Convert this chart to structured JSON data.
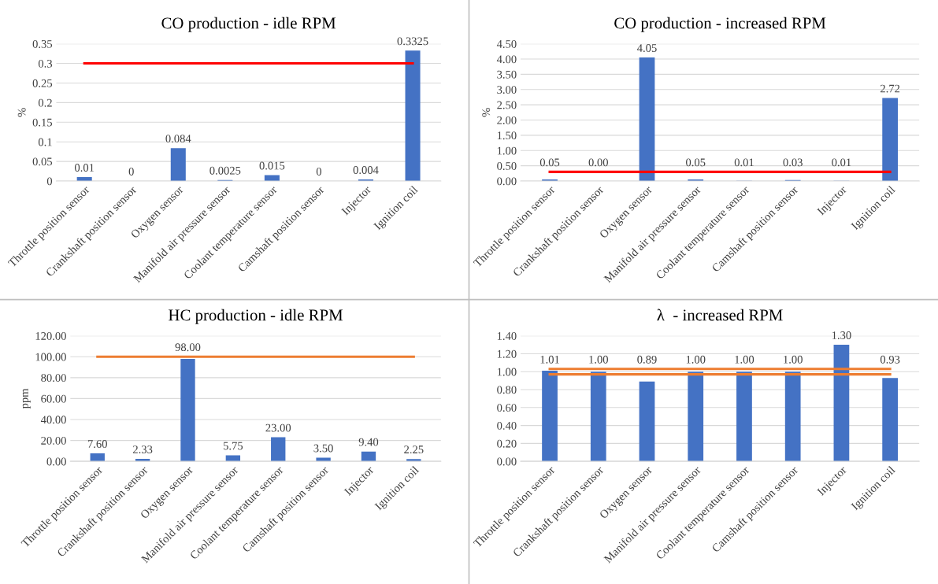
{
  "chart_data": [
    {
      "type": "bar",
      "title": "CO production - idle RPM",
      "ylabel": "%",
      "categories": [
        "Throttle position sensor",
        "Crankshaft position sensor",
        "Oxygen sensor",
        "Manifold air pressure sensor",
        "Coolant temperature sensor",
        "Camshaft position sensor",
        "Injector",
        "Ignition coil"
      ],
      "ylim": [
        0,
        0.35
      ],
      "yticks": [
        0,
        0.05,
        0.1,
        0.15,
        0.2,
        0.25,
        0.3,
        0.35
      ],
      "grid": "y",
      "legend": false,
      "series": [
        {
          "color": "#4472c4",
          "values": [
            0.01,
            0,
            0.084,
            0.0025,
            0.015,
            0,
            0.004,
            0.3325
          ],
          "value_labels": [
            "0.01",
            "0",
            "0.084",
            "0.0025",
            "0.015",
            "0",
            "0.004",
            "0.3325"
          ]
        },
        {
          "type": "line",
          "color": "#ff0000",
          "values": [
            0.3,
            0.3,
            0.3,
            0.3,
            0.3,
            0.3,
            0.3,
            0.3
          ]
        }
      ]
    },
    {
      "type": "bar",
      "title": "CO production - increased RPM",
      "ylabel": "%",
      "categories": [
        "Throttle position sensor",
        "Crankshaft position sensor",
        "Oxygen sensor",
        "Manifold air pressure sensor",
        "Coolant temperature sensor",
        "Camshaft position sensor",
        "Injector",
        "Ignition coil"
      ],
      "ylim": [
        0,
        4.5
      ],
      "yticks": [
        {
          "value": 0,
          "label": "0.00"
        },
        {
          "value": 0.5,
          "label": "0.50"
        },
        {
          "value": 1,
          "label": "1.00"
        },
        {
          "value": 1.5,
          "label": "1.50"
        },
        {
          "value": 2,
          "label": "2.00"
        },
        {
          "value": 2.5,
          "label": "2.50"
        },
        {
          "value": 3,
          "label": "3.00"
        },
        {
          "value": 3.5,
          "label": "3.50"
        },
        {
          "value": 4,
          "label": "4.00"
        },
        {
          "value": 4.5,
          "label": "4.50"
        }
      ],
      "grid": "y",
      "legend": false,
      "series": [
        {
          "color": "#4472c4",
          "values": [
            0.05,
            0.0,
            4.05,
            0.05,
            0.01,
            0.03,
            0.01,
            2.72
          ],
          "value_labels": [
            "0.05",
            "0.00",
            "4.05",
            "0.05",
            "0.01",
            "0.03",
            "0.01",
            "2.72"
          ]
        },
        {
          "type": "line",
          "color": "#ff0000",
          "values": [
            0.3,
            0.3,
            0.3,
            0.3,
            0.3,
            0.3,
            0.3,
            0.3
          ]
        }
      ]
    },
    {
      "type": "bar",
      "title": "HC production - idle RPM",
      "ylabel": "ppm",
      "categories": [
        "Throttle position sensor",
        "Crankshaft position sensor",
        "Oxygen sensor",
        "Manifold air pressure sensor",
        "Coolant temperature sensor",
        "Camshaft position sensor",
        "Injector",
        "Ignition coil"
      ],
      "ylim": [
        0,
        120
      ],
      "yticks": [
        {
          "value": 0,
          "label": "0.00"
        },
        {
          "value": 20,
          "label": "20.00"
        },
        {
          "value": 40,
          "label": "40.00"
        },
        {
          "value": 60,
          "label": "60.00"
        },
        {
          "value": 80,
          "label": "80.00"
        },
        {
          "value": 100,
          "label": "100.00"
        },
        {
          "value": 120,
          "label": "120.00"
        }
      ],
      "grid": "y",
      "legend": false,
      "series": [
        {
          "color": "#4472c4",
          "values": [
            7.6,
            2.33,
            98.0,
            5.75,
            23.0,
            3.5,
            9.4,
            2.25
          ],
          "value_labels": [
            "7.60",
            "2.33",
            "98.00",
            "5.75",
            "23.00",
            "3.50",
            "9.40",
            "2.25"
          ]
        },
        {
          "type": "line",
          "color": "#ed7d31",
          "values": [
            100,
            100,
            100,
            100,
            100,
            100,
            100,
            100
          ]
        }
      ]
    },
    {
      "type": "bar",
      "title": "λ  - increased RPM",
      "categories": [
        "Throttle position sensor",
        "Crankshaft position sensor",
        "Oxygen sensor",
        "Manifold air pressure sensor",
        "Coolant temperature sensor",
        "Camshaft position sensor",
        "Injector",
        "Ignition coil"
      ],
      "ylim": [
        0,
        1.4
      ],
      "yticks": [
        {
          "value": 0,
          "label": "0.00"
        },
        {
          "value": 0.2,
          "label": "0.20"
        },
        {
          "value": 0.4,
          "label": "0.40"
        },
        {
          "value": 0.6,
          "label": "0.60"
        },
        {
          "value": 0.8,
          "label": "0.80"
        },
        {
          "value": 1.0,
          "label": "1.00"
        },
        {
          "value": 1.2,
          "label": "1.20"
        },
        {
          "value": 1.4,
          "label": "1.40"
        }
      ],
      "grid": "y",
      "legend": false,
      "series": [
        {
          "color": "#4472c4",
          "values": [
            1.01,
            1.0,
            0.89,
            1.0,
            1.0,
            1.0,
            1.3,
            0.93
          ],
          "value_labels": [
            "1.01",
            "1.00",
            "0.89",
            "1.00",
            "1.00",
            "1.00",
            "1.30",
            "0.93"
          ]
        },
        {
          "type": "line",
          "color": "#ed7d31",
          "values": [
            1.03,
            1.03,
            1.03,
            1.03,
            1.03,
            1.03,
            1.03,
            1.03
          ]
        },
        {
          "type": "line",
          "color": "#ed7d31",
          "values": [
            0.97,
            0.97,
            0.97,
            0.97,
            0.97,
            0.97,
            0.97,
            0.97
          ]
        }
      ]
    }
  ]
}
